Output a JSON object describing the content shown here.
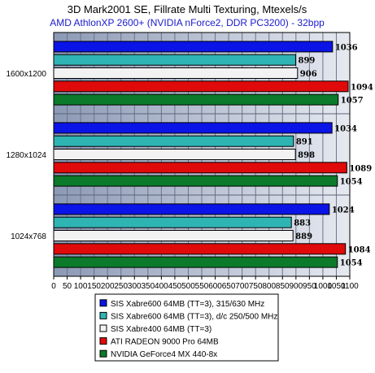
{
  "chart_data": {
    "type": "bar",
    "orientation": "horizontal",
    "title": "3D Mark2001 SE, Fillrate Multi Texturing, Mtexels/s",
    "subtitle": "AMD AthlonXP 2600+ (NVIDIA nForce2, DDR PC3200) - 32bpp",
    "categories": [
      "1600x1200",
      "1280x1024",
      "1024x768"
    ],
    "xlim": [
      0,
      1100
    ],
    "xticks": [
      0,
      50,
      100,
      150,
      200,
      250,
      300,
      350,
      400,
      450,
      500,
      550,
      600,
      650,
      700,
      750,
      800,
      850,
      900,
      950,
      1000,
      1050,
      1100
    ],
    "grid": true,
    "legend_position": "bottom",
    "series": [
      {
        "name": "SIS Xabre600 64MB (TT=3), 315/630 MHz",
        "color": "#0a14e6",
        "values": [
          1036,
          1034,
          1024
        ]
      },
      {
        "name": "SIS Xabre600 64MB (TT=3), d/c 250/500 MHz",
        "color": "#2fb4b4",
        "values": [
          899,
          891,
          883
        ]
      },
      {
        "name": "SIS Xabre400 64MB (TT=3)",
        "color": "#f2f2f2",
        "values": [
          906,
          898,
          889
        ]
      },
      {
        "name": "ATI RADEON 9000 Pro 64MB",
        "color": "#e00a0a",
        "values": [
          1094,
          1089,
          1084
        ]
      },
      {
        "name": "NVIDIA GeForce4 MX 440-8x",
        "color": "#0b7a2a",
        "values": [
          1057,
          1054,
          1054
        ]
      }
    ]
  }
}
